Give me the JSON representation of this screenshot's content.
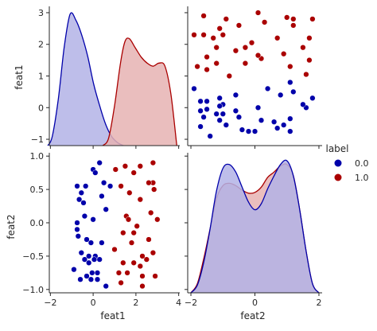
{
  "chart_data": {
    "type": "pairplot",
    "variables": [
      "feat1",
      "feat2"
    ],
    "hue": "label",
    "legend": {
      "title": "label",
      "placement": "right",
      "entries": [
        {
          "label": "0.0",
          "color": "#0000aa"
        },
        {
          "label": "1.0",
          "color": "#aa0000"
        }
      ]
    },
    "axes": {
      "feat1": {
        "lim": [
          -2.05,
          4.05
        ],
        "ticks": [
          -2,
          0,
          2,
          4
        ],
        "tick_labels": [
          "−2",
          "0",
          "2",
          "4"
        ]
      },
      "feat2": {
        "lim": [
          -1.05,
          1.05
        ],
        "ticks": [
          -1.0,
          -0.5,
          0.0,
          0.5,
          1.0
        ],
        "tick_labels": [
          "−1.0",
          "−0.5",
          "0.0",
          "0.5",
          "1.0"
        ]
      },
      "diag_feat1_ticks": [
        -1,
        0,
        1,
        2,
        3
      ],
      "diag_feat1_tick_labels": [
        "−1",
        "0",
        "1",
        "2",
        "3"
      ],
      "row1_feat1_lim": [
        -1.2,
        3.2
      ]
    },
    "scatter": [
      {
        "label": "0.0",
        "color": "#0000aa",
        "points": [
          [
            -0.75,
            0.55
          ],
          [
            -0.65,
            0.35
          ],
          [
            -0.55,
            0.45
          ],
          [
            -0.45,
            0.3
          ],
          [
            -0.35,
            0.55
          ],
          [
            -0.4,
            0.1
          ],
          [
            -0.75,
            0.0
          ],
          [
            -0.75,
            -0.1
          ],
          [
            -0.7,
            -0.2
          ],
          [
            -0.3,
            -0.25
          ],
          [
            -0.55,
            -0.45
          ],
          [
            -0.4,
            -0.55
          ],
          [
            -0.2,
            -0.5
          ],
          [
            0.1,
            -0.5
          ],
          [
            0.3,
            -0.55
          ],
          [
            -0.2,
            -0.6
          ],
          [
            -0.05,
            -0.75
          ],
          [
            0.2,
            -0.75
          ],
          [
            -0.9,
            -0.7
          ],
          [
            -0.6,
            -0.85
          ],
          [
            -0.3,
            -0.8
          ],
          [
            -0.1,
            -0.85
          ],
          [
            0.2,
            -0.85
          ],
          [
            0.6,
            -0.95
          ],
          [
            0.0,
            0.8
          ],
          [
            0.1,
            0.75
          ],
          [
            0.3,
            0.9
          ],
          [
            0.5,
            0.6
          ],
          [
            0.8,
            0.55
          ],
          [
            0.4,
            0.4
          ],
          [
            0.6,
            0.2
          ],
          [
            0.0,
            0.05
          ],
          [
            -0.1,
            -0.3
          ],
          [
            0.4,
            -0.3
          ],
          [
            0.05,
            -0.55
          ]
        ]
      },
      {
        "label": "1.0",
        "color": "#aa0000",
        "points": [
          [
            1.05,
            0.8
          ],
          [
            1.5,
            0.85
          ],
          [
            1.9,
            0.75
          ],
          [
            2.2,
            0.85
          ],
          [
            2.8,
            0.9
          ],
          [
            2.8,
            0.6
          ],
          [
            2.85,
            0.5
          ],
          [
            1.7,
            0.45
          ],
          [
            1.3,
            0.55
          ],
          [
            2.2,
            0.35
          ],
          [
            2.7,
            0.15
          ],
          [
            3.0,
            0.05
          ],
          [
            1.55,
            0.1
          ],
          [
            1.65,
            0.05
          ],
          [
            2.05,
            -0.05
          ],
          [
            1.4,
            -0.15
          ],
          [
            2.6,
            -0.25
          ],
          [
            1.8,
            -0.3
          ],
          [
            1.0,
            -0.4
          ],
          [
            2.3,
            -0.5
          ],
          [
            2.8,
            -0.45
          ],
          [
            1.4,
            -0.6
          ],
          [
            1.9,
            -0.6
          ],
          [
            2.5,
            -0.55
          ],
          [
            2.2,
            -0.65
          ],
          [
            1.2,
            -0.75
          ],
          [
            1.6,
            -0.75
          ],
          [
            2.3,
            -0.8
          ],
          [
            1.3,
            -0.9
          ],
          [
            2.3,
            -0.95
          ],
          [
            2.9,
            -0.8
          ],
          [
            1.9,
            -0.15
          ],
          [
            2.6,
            0.6
          ]
        ]
      }
    ],
    "kde_feat1": [
      {
        "label": "0.0",
        "color": "#0000aa",
        "fill": "#b3b3e6",
        "x": [
          -1.25,
          -1.1,
          -0.9,
          -0.7,
          -0.5,
          -0.3,
          -0.1,
          0.1,
          0.3,
          0.5,
          0.7,
          0.9,
          1.1,
          1.3
        ],
        "y": [
          0.0,
          0.15,
          0.75,
          1.6,
          2.15,
          2.05,
          1.8,
          1.45,
          1.0,
          0.65,
          0.35,
          0.15,
          0.05,
          0.0
        ]
      },
      {
        "label": "1.0",
        "color": "#aa0000",
        "fill": "#e6b3b3",
        "x": [
          0.6,
          0.8,
          1.0,
          1.2,
          1.35,
          1.5,
          1.7,
          1.9,
          2.1,
          2.3,
          2.5,
          2.7,
          2.9,
          3.1
        ],
        "y": [
          0.0,
          0.12,
          0.65,
          1.35,
          1.7,
          1.75,
          1.6,
          1.45,
          1.35,
          1.3,
          1.35,
          1.3,
          0.85,
          0.0
        ]
      }
    ],
    "kde_feat2": [
      {
        "label": "1.0",
        "color": "#aa0000",
        "fill": "#e6b3b3",
        "x": [
          -1.0,
          -0.9,
          -0.8,
          -0.7,
          -0.6,
          -0.5,
          -0.4,
          -0.3,
          -0.2,
          -0.1,
          0.0,
          0.1,
          0.2,
          0.3,
          0.4,
          0.5,
          0.6,
          0.7,
          0.8,
          0.9,
          1.0
        ],
        "y": [
          0.0,
          0.12,
          0.45,
          0.85,
          1.25,
          1.42,
          1.45,
          1.42,
          1.36,
          1.32,
          1.33,
          1.4,
          1.53,
          1.6,
          1.68,
          1.7,
          1.55,
          1.1,
          0.55,
          0.12,
          0.0
        ]
      },
      {
        "label": "0.0",
        "color": "#0000aa",
        "fill": "#b3b3e6",
        "x": [
          -1.0,
          -0.9,
          -0.8,
          -0.7,
          -0.6,
          -0.5,
          -0.4,
          -0.3,
          -0.2,
          -0.1,
          0.0,
          0.1,
          0.2,
          0.3,
          0.4,
          0.5,
          0.6,
          0.7,
          0.8,
          0.9,
          1.0
        ],
        "y": [
          0.0,
          0.1,
          0.4,
          0.85,
          1.35,
          1.65,
          1.7,
          1.6,
          1.4,
          1.2,
          1.1,
          1.18,
          1.38,
          1.55,
          1.7,
          1.75,
          1.55,
          1.1,
          0.55,
          0.12,
          0.0
        ]
      }
    ]
  }
}
